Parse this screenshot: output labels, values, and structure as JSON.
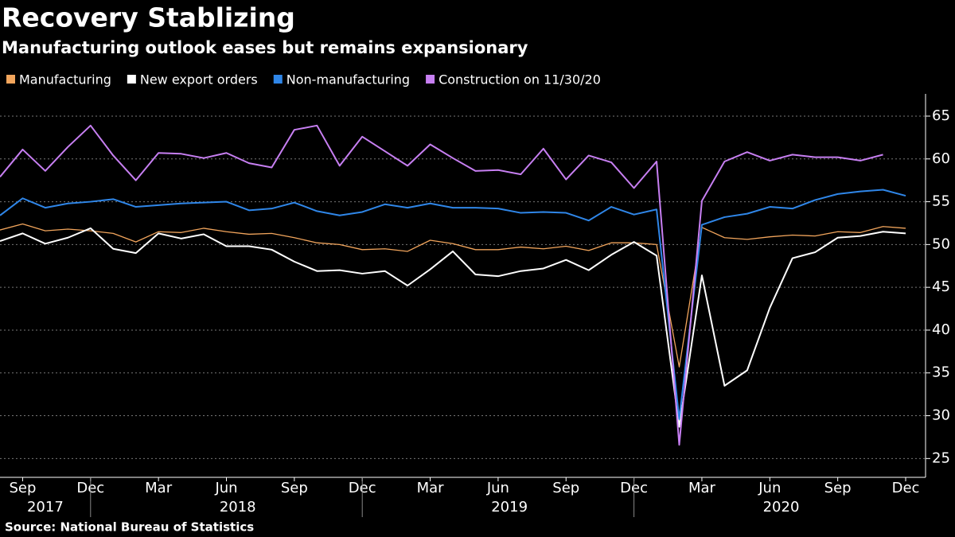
{
  "chart_data": {
    "type": "line",
    "title": "Recovery Stablizing",
    "subtitle": "Manufacturing outlook eases but remains expansionary",
    "source": "Source: National Bureau of Statistics",
    "x": [
      "2017-08",
      "2017-09",
      "2017-10",
      "2017-11",
      "2017-12",
      "2018-01",
      "2018-02",
      "2018-03",
      "2018-04",
      "2018-05",
      "2018-06",
      "2018-07",
      "2018-08",
      "2018-09",
      "2018-10",
      "2018-11",
      "2018-12",
      "2019-01",
      "2019-02",
      "2019-03",
      "2019-04",
      "2019-05",
      "2019-06",
      "2019-07",
      "2019-08",
      "2019-09",
      "2019-10",
      "2019-11",
      "2019-12",
      "2020-01",
      "2020-02",
      "2020-03",
      "2020-04",
      "2020-05",
      "2020-06",
      "2020-07",
      "2020-08",
      "2020-09",
      "2020-10",
      "2020-11",
      "2020-12"
    ],
    "xticks": [
      {
        "value": "2017-09",
        "label": "Sep"
      },
      {
        "value": "2017-12",
        "label": "Dec"
      },
      {
        "value": "2018-03",
        "label": "Mar"
      },
      {
        "value": "2018-06",
        "label": "Jun"
      },
      {
        "value": "2018-09",
        "label": "Sep"
      },
      {
        "value": "2018-12",
        "label": "Dec"
      },
      {
        "value": "2019-03",
        "label": "Mar"
      },
      {
        "value": "2019-06",
        "label": "Jun"
      },
      {
        "value": "2019-09",
        "label": "Sep"
      },
      {
        "value": "2019-12",
        "label": "Dec"
      },
      {
        "value": "2020-03",
        "label": "Mar"
      },
      {
        "value": "2020-06",
        "label": "Jun"
      },
      {
        "value": "2020-09",
        "label": "Sep"
      },
      {
        "value": "2020-12",
        "label": "Dec"
      }
    ],
    "years": [
      2017,
      2018,
      2019,
      2020
    ],
    "ylim": [
      22.8,
      67.6
    ],
    "yticks": [
      25,
      30,
      35,
      40,
      45,
      50,
      55,
      60,
      65
    ],
    "grid": true,
    "legend": "top-left",
    "series": [
      {
        "name": "Manufacturing",
        "color": "#f2a55c",
        "values": [
          51.7,
          52.4,
          51.6,
          51.8,
          51.6,
          51.3,
          50.3,
          51.5,
          51.4,
          51.9,
          51.5,
          51.2,
          51.3,
          50.8,
          50.2,
          50.0,
          49.4,
          49.5,
          49.2,
          50.5,
          50.1,
          49.4,
          49.4,
          49.7,
          49.5,
          49.8,
          49.3,
          50.2,
          50.2,
          50.0,
          35.7,
          52.0,
          50.8,
          50.6,
          50.9,
          51.1,
          51.0,
          51.5,
          51.4,
          52.1,
          51.9
        ]
      },
      {
        "name": "New export orders",
        "color": "#ffffff",
        "values": [
          50.4,
          51.3,
          50.1,
          50.8,
          51.9,
          49.5,
          49.0,
          51.3,
          50.7,
          51.2,
          49.8,
          49.8,
          49.4,
          48.0,
          46.9,
          47.0,
          46.6,
          46.9,
          45.2,
          47.1,
          49.2,
          46.5,
          46.3,
          46.9,
          47.2,
          48.2,
          47.0,
          48.8,
          50.3,
          48.7,
          28.7,
          46.4,
          33.5,
          35.3,
          42.6,
          48.4,
          49.1,
          50.8,
          51.0,
          51.5,
          51.3
        ]
      },
      {
        "name": "Non-manufacturing",
        "color": "#2f86e8",
        "values": [
          53.4,
          55.4,
          54.3,
          54.8,
          55.0,
          55.3,
          54.4,
          54.6,
          54.8,
          54.9,
          55.0,
          54.0,
          54.2,
          54.9,
          53.9,
          53.4,
          53.8,
          54.7,
          54.3,
          54.8,
          54.3,
          54.3,
          54.2,
          53.7,
          53.8,
          53.7,
          52.8,
          54.4,
          53.5,
          54.1,
          29.6,
          52.3,
          53.2,
          53.6,
          54.4,
          54.2,
          55.2,
          55.9,
          56.2,
          56.4,
          55.7
        ]
      },
      {
        "name": "Construction on 11/30/20",
        "color": "#c77ff2",
        "values": [
          57.9,
          61.1,
          58.6,
          61.4,
          63.9,
          60.4,
          57.5,
          60.7,
          60.6,
          60.1,
          60.7,
          59.5,
          59.0,
          63.4,
          63.9,
          59.2,
          62.6,
          60.9,
          59.2,
          61.7,
          60.1,
          58.6,
          58.7,
          58.2,
          61.2,
          57.6,
          60.4,
          59.6,
          56.6,
          59.7,
          26.6,
          55.1,
          59.7,
          60.8,
          59.8,
          60.5,
          60.2,
          60.2,
          59.8,
          60.5,
          null
        ]
      }
    ]
  }
}
